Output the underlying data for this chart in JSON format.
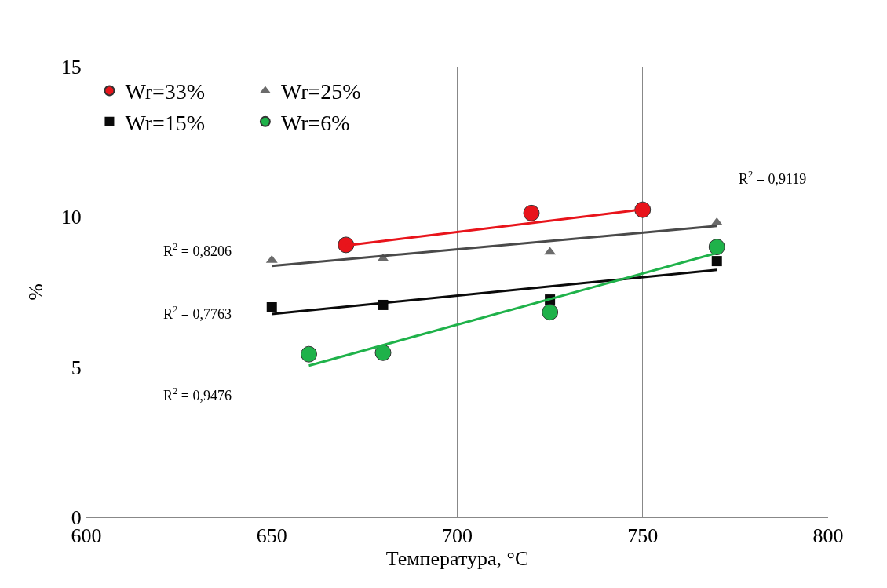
{
  "chart_data": {
    "type": "scatter",
    "xlabel": "Температура, °C",
    "ylabel": "%",
    "xlim": [
      600,
      800
    ],
    "xticks": [
      600,
      650,
      700,
      750,
      800
    ],
    "ylim": [
      0,
      15
    ],
    "yticks": [
      0,
      5,
      10,
      15
    ],
    "grid": true,
    "legend": "top left",
    "series": [
      {
        "name": "Wr=33%",
        "marker": "circle",
        "color": "#e8141b",
        "x": [
          670,
          720,
          750
        ],
        "values": [
          9.07,
          10.13,
          10.24
        ]
      },
      {
        "name": "Wr=25%",
        "marker": "triangle",
        "color": "#6b6b6b",
        "x": [
          650,
          680,
          725,
          770
        ],
        "values": [
          8.56,
          8.61,
          8.83,
          9.81
        ]
      },
      {
        "name": "Wr=15%",
        "marker": "square",
        "color": "#0a0a0a",
        "x": [
          650,
          680,
          725,
          770
        ],
        "values": [
          6.99,
          7.07,
          7.25,
          8.53
        ]
      },
      {
        "name": "Wr=6%",
        "marker": "circle",
        "color": "#1fb24a",
        "x": [
          660,
          680,
          725,
          770
        ],
        "values": [
          5.43,
          5.48,
          6.83,
          9.0
        ]
      },
      {
        "type": "line",
        "color": "#e8141b",
        "x": [
          670,
          750
        ],
        "values": [
          9.05,
          10.25
        ]
      },
      {
        "type": "line",
        "color": "#4a4a4a",
        "x": [
          650,
          770
        ],
        "values": [
          8.37,
          9.7
        ]
      },
      {
        "type": "line",
        "color": "#0a0a0a",
        "x": [
          650,
          770
        ],
        "values": [
          6.77,
          8.24
        ]
      },
      {
        "type": "line",
        "color": "#1fb24a",
        "x": [
          660,
          770
        ],
        "values": [
          5.05,
          8.8
        ]
      }
    ],
    "annotations": [
      "R$^{2}$ = 0,9119",
      "R$^{2}$ = 0,8206",
      "R$^{2}$ = 0,7763",
      "R$^{2}$ = 0,9476"
    ]
  }
}
